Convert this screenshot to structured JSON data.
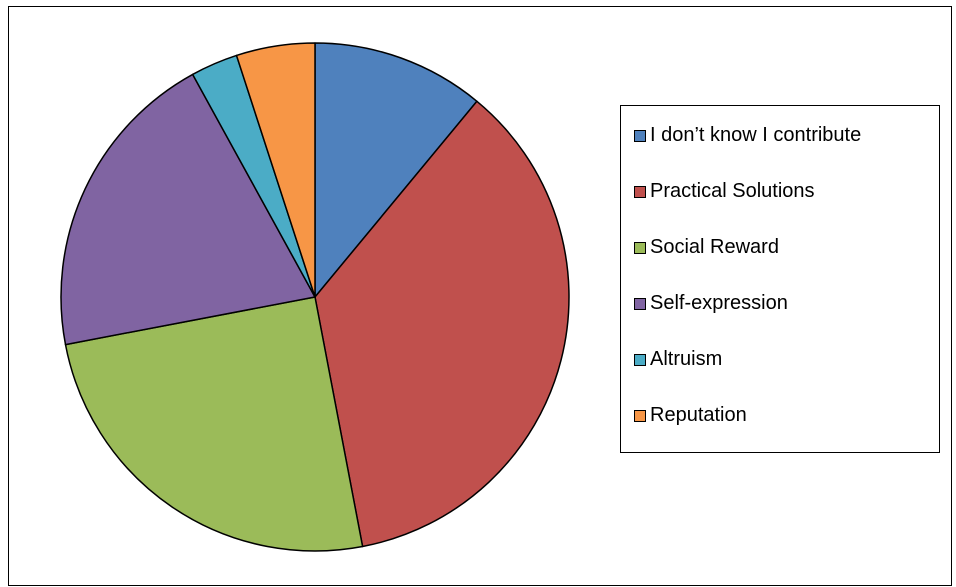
{
  "chart_data": {
    "type": "pie",
    "title": "",
    "slices": [
      {
        "label": "I don’t know I contribute",
        "value": 11,
        "color": "#4F81BD"
      },
      {
        "label": "Practical Solutions",
        "value": 36,
        "color": "#C0504D"
      },
      {
        "label": "Social Reward",
        "value": 25,
        "color": "#9BBB59"
      },
      {
        "label": "Self-expression",
        "value": 20,
        "color": "#8064A2"
      },
      {
        "label": "Altruism",
        "value": 3,
        "color": "#4BACC6"
      },
      {
        "label": "Reputation",
        "value": 5,
        "color": "#F79646"
      }
    ],
    "start_angle_deg": 0,
    "direction": "clockwise",
    "legend_position": "right",
    "slice_outline_color": "#000000"
  }
}
